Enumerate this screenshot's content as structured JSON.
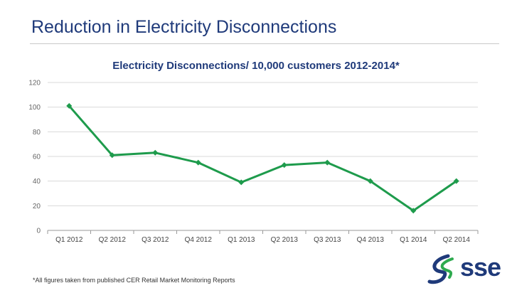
{
  "slide": {
    "title": "Reduction in Electricity Disconnections",
    "footnote": "*All figures taken from published CER Retail Market Monitoring Reports"
  },
  "logo": {
    "text": "sse"
  },
  "colors": {
    "series": "#1e9b4c",
    "title": "#1f3a7a",
    "grid": "#d9d9d9",
    "logo_blue": "#1f3a7a",
    "logo_green": "#2eaa4f"
  },
  "chart_data": {
    "type": "line",
    "title": "Electricity Disconnections/ 10,000 customers 2012-2014*",
    "xlabel": "",
    "ylabel": "",
    "ylim": [
      0,
      120
    ],
    "yticks": [
      0,
      20,
      40,
      60,
      80,
      100,
      120
    ],
    "grid": true,
    "categories": [
      "Q1 2012",
      "Q2 2012",
      "Q3 2012",
      "Q4 2012",
      "Q1 2013",
      "Q2 2013",
      "Q3 2013",
      "Q4 2013",
      "Q1 2014",
      "Q2 2014"
    ],
    "series": [
      {
        "name": "Electricity Disconnections/ 10,000 customers",
        "values": [
          101,
          61,
          63,
          55,
          39,
          53,
          55,
          40,
          16,
          40
        ]
      }
    ]
  }
}
